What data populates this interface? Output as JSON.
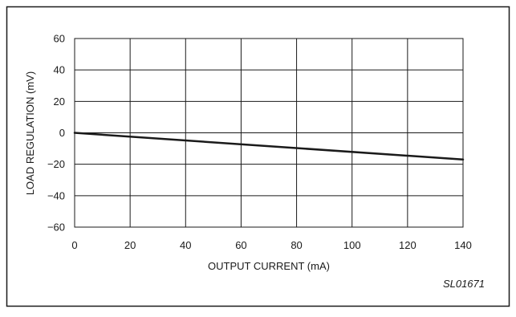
{
  "chart_data": {
    "type": "line",
    "xlabel": "OUTPUT CURRENT (mA)",
    "ylabel": "LOAD REGULATION (mV)",
    "xlim": [
      0,
      140
    ],
    "ylim": [
      -60,
      60
    ],
    "x_ticks": [
      0,
      20,
      40,
      60,
      80,
      100,
      120,
      140
    ],
    "y_ticks": [
      60,
      40,
      20,
      0,
      -20,
      -40,
      -60
    ],
    "x_tick_labels": [
      "0",
      "20",
      "40",
      "60",
      "80",
      "100",
      "120",
      "140"
    ],
    "y_tick_labels": [
      "60",
      "40",
      "20",
      "0",
      "−20",
      "−40",
      "−60"
    ],
    "grid": true,
    "series": [
      {
        "x": [
          0,
          140
        ],
        "y": [
          0,
          -17
        ],
        "color": "#1a1a1a"
      }
    ]
  },
  "figure_code": "SL01671"
}
